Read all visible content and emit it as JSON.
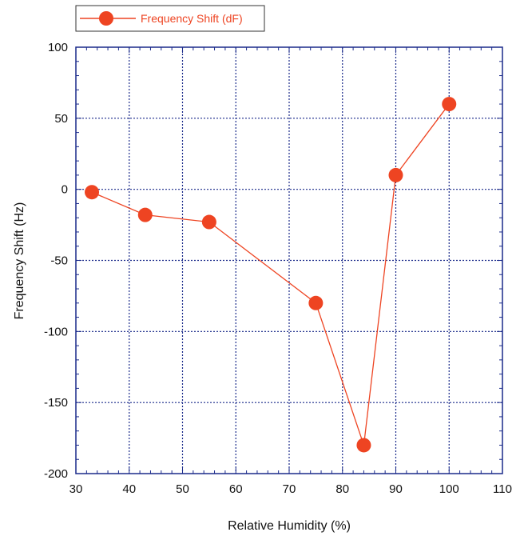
{
  "chart_data": {
    "type": "line",
    "xlabel": "Relative Humidity (%)",
    "ylabel": "Frequency Shift (Hz)",
    "xlim": [
      30,
      110
    ],
    "ylim": [
      -200,
      100
    ],
    "xticks": [
      30,
      40,
      50,
      60,
      70,
      80,
      90,
      100,
      110
    ],
    "yticks": [
      -200,
      -150,
      -100,
      -50,
      0,
      50,
      100
    ],
    "xtick_labels": [
      "30",
      "40",
      "50",
      "60",
      "70",
      "80",
      "90",
      "100",
      "110"
    ],
    "ytick_labels": [
      "-200",
      "-150",
      "-100",
      "-50",
      "0",
      "50",
      "100"
    ],
    "grid": true,
    "legend_position": "top-left",
    "series": [
      {
        "name": "Frequency Shift (dF)",
        "color": "#ee4422",
        "x": [
          33,
          43,
          55,
          75,
          84,
          90,
          100
        ],
        "y": [
          -2,
          -18,
          -23,
          -80,
          -180,
          10,
          60
        ]
      }
    ],
    "colors": {
      "series": "#ee4422",
      "grid": "#1a2a8a",
      "frame": "#1a2a8a"
    }
  }
}
